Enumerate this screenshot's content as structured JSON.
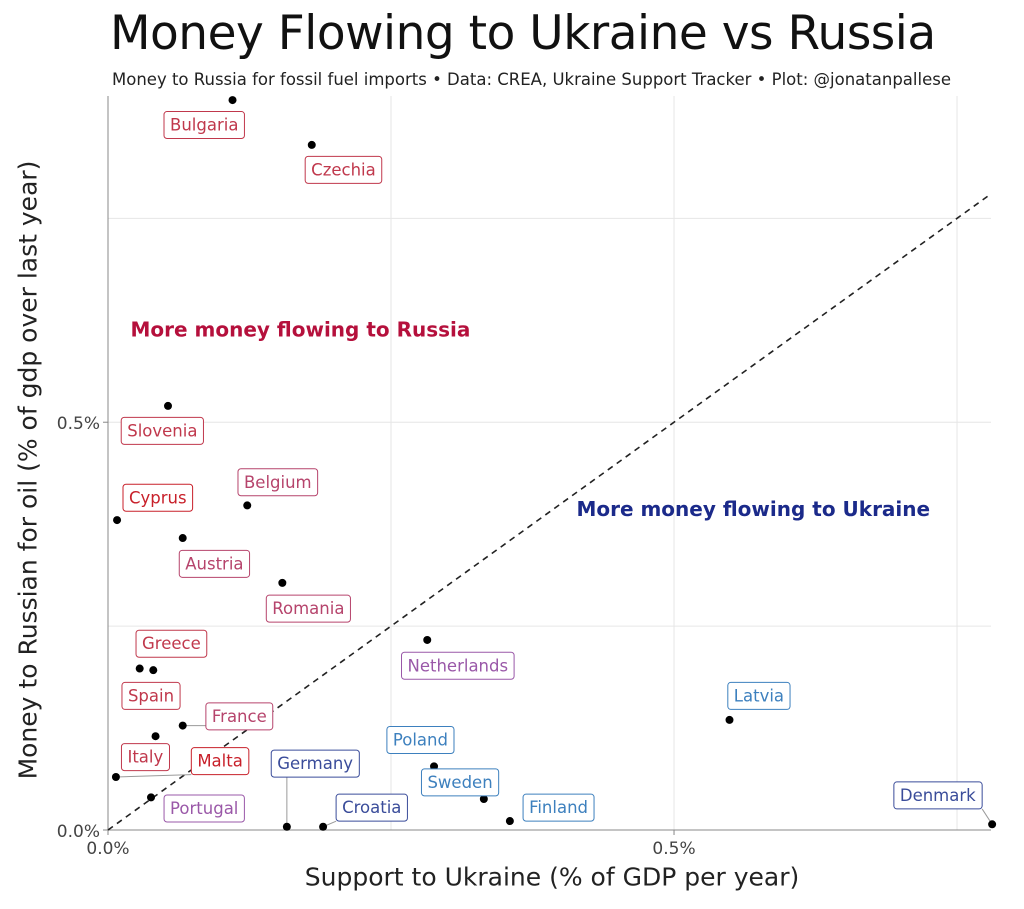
{
  "header": {
    "title": "Money Flowing to Ukraine vs Russia",
    "subtitle": "Money to Russia for fossil fuel imports • Data: CREA, Ukraine Support Tracker • Plot: @jonatanpallese"
  },
  "chart_data": {
    "type": "scatter",
    "title": "Money Flowing to Ukraine vs Russia",
    "subtitle": "Money to Russia for fossil fuel imports • Data: CREA, Ukraine Support Tracker • Plot: @jonatanpallese",
    "xlabel": "Support to Ukraine (% of GDP per year)",
    "ylabel": "Money to Russian for oil (% of gdp over last year)",
    "xlim": [
      0,
      0.78
    ],
    "ylim": [
      0,
      0.9
    ],
    "x_ticks": [
      {
        "value": 0,
        "label": "0.0%"
      },
      {
        "value": 0.5,
        "label": "0.5%"
      }
    ],
    "y_ticks": [
      {
        "value": 0,
        "label": "0.0%"
      },
      {
        "value": 0.5,
        "label": "0.5%"
      }
    ],
    "grid": true,
    "reference_line": {
      "style": "dashed",
      "description": "y = x"
    },
    "annotations": [
      {
        "text": "More money flowing to Russia",
        "x": 0.17,
        "y": 0.605,
        "color": "#b5103c"
      },
      {
        "text": "More money flowing to Ukraine",
        "x": 0.57,
        "y": 0.385,
        "color": "#1b2a8a"
      }
    ],
    "points": [
      {
        "country": "Bulgaria",
        "x": 0.11,
        "y": 0.895,
        "lx": 0.085,
        "ly": 0.865,
        "color": "#c0384c"
      },
      {
        "country": "Czechia",
        "x": 0.18,
        "y": 0.84,
        "lx": 0.208,
        "ly": 0.81,
        "color": "#c0384c"
      },
      {
        "country": "Slovenia",
        "x": 0.053,
        "y": 0.52,
        "lx": 0.048,
        "ly": 0.49,
        "color": "#c0384c"
      },
      {
        "country": "Cyprus",
        "x": 0.008,
        "y": 0.38,
        "lx": 0.044,
        "ly": 0.408,
        "color": "#c8202a"
      },
      {
        "country": "Belgium",
        "x": 0.123,
        "y": 0.398,
        "lx": 0.15,
        "ly": 0.427,
        "color": "#b6446c"
      },
      {
        "country": "Austria",
        "x": 0.066,
        "y": 0.358,
        "lx": 0.094,
        "ly": 0.327,
        "color": "#b6446c"
      },
      {
        "country": "Romania",
        "x": 0.154,
        "y": 0.303,
        "lx": 0.177,
        "ly": 0.272,
        "color": "#b6446c"
      },
      {
        "country": "Greece",
        "x": 0.028,
        "y": 0.198,
        "lx": 0.056,
        "ly": 0.229,
        "color": "#c0384c"
      },
      {
        "country": "Spain",
        "x": 0.04,
        "y": 0.196,
        "lx": 0.038,
        "ly": 0.165,
        "color": "#c0384c"
      },
      {
        "country": "Netherlands",
        "x": 0.282,
        "y": 0.233,
        "lx": 0.309,
        "ly": 0.202,
        "color": "#9a58a8"
      },
      {
        "country": "France",
        "x": 0.066,
        "y": 0.128,
        "lx": 0.116,
        "ly": 0.14,
        "color": "#b6446c"
      },
      {
        "country": "Italy",
        "x": 0.042,
        "y": 0.115,
        "lx": 0.033,
        "ly": 0.09,
        "color": "#c0384c"
      },
      {
        "country": "Malta",
        "x": 0.007,
        "y": 0.065,
        "lx": 0.099,
        "ly": 0.085,
        "color": "#c8202a"
      },
      {
        "country": "Portugal",
        "x": 0.038,
        "y": 0.04,
        "lx": 0.085,
        "ly": 0.027,
        "color": "#9a58a8"
      },
      {
        "country": "Germany",
        "x": 0.158,
        "y": 0.004,
        "lx": 0.183,
        "ly": 0.082,
        "color": "#3a4c9a"
      },
      {
        "country": "Croatia",
        "x": 0.19,
        "y": 0.004,
        "lx": 0.233,
        "ly": 0.028,
        "color": "#3a4c9a"
      },
      {
        "country": "Poland",
        "x": 0.288,
        "y": 0.078,
        "lx": 0.276,
        "ly": 0.111,
        "color": "#3d80be"
      },
      {
        "country": "Sweden",
        "x": 0.332,
        "y": 0.038,
        "lx": 0.311,
        "ly": 0.059,
        "color": "#3d80be"
      },
      {
        "country": "Finland",
        "x": 0.355,
        "y": 0.011,
        "lx": 0.398,
        "ly": 0.028,
        "color": "#3d80be"
      },
      {
        "country": "Latvia",
        "x": 0.549,
        "y": 0.135,
        "lx": 0.575,
        "ly": 0.165,
        "color": "#3d80be"
      },
      {
        "country": "Denmark",
        "x": 0.781,
        "y": 0.007,
        "lx": 0.733,
        "ly": 0.043,
        "color": "#3a4c9a"
      }
    ]
  }
}
